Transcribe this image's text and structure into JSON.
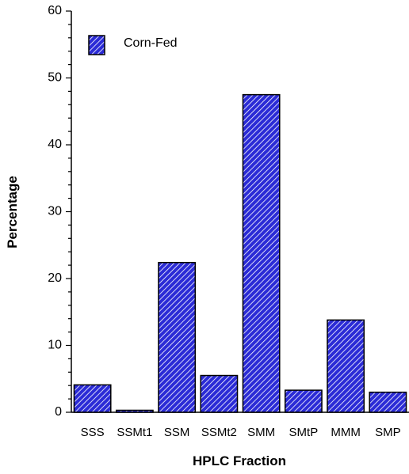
{
  "chart_data": {
    "type": "bar",
    "categories": [
      "SSS",
      "SSMt1",
      "SSM",
      "SSMt2",
      "SMM",
      "SMtP",
      "MMM",
      "SMP"
    ],
    "series": [
      {
        "name": "Corn-Fed",
        "values": [
          4.1,
          0.3,
          22.4,
          5.5,
          47.5,
          3.3,
          13.8,
          3.0
        ]
      }
    ],
    "xlabel": "HPLC Fraction",
    "ylabel": "Percentage",
    "ylim": [
      0,
      60
    ],
    "yticks": [
      0,
      10,
      20,
      30,
      40,
      50,
      60
    ],
    "grid": false,
    "legend_position": "top-left",
    "colors": {
      "bar_fill": "#2b2bd6",
      "hatch": "#ffffff",
      "stroke": "#000000"
    }
  }
}
